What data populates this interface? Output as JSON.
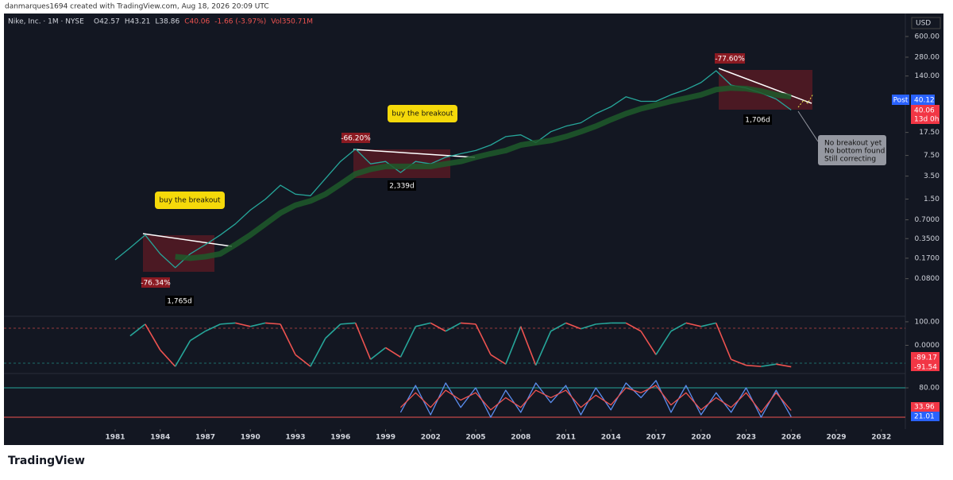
{
  "header": {
    "credit": "danmarques1694 created with TradingView.com, Aug 18, 2026 20:09 UTC",
    "symbol": "Nike, Inc. · 1M · NYSE",
    "ohlc": [
      "O42.57",
      "H43.21",
      "L38.86",
      "C40.06",
      "-1.66 (-3.97%)",
      "Vol350.71M"
    ]
  },
  "axis_labels": {
    "currency": "USD",
    "post": "Post",
    "post_price": "40.12",
    "close": "40.06",
    "countdown": "13d 0h",
    "osc_a": "-89.17",
    "osc_b": "-91.54",
    "stoch_d": "33.96",
    "stoch_k": "21.01"
  },
  "annotations": {
    "breakout_1": "buy the breakout",
    "drop_1": "-76.34%",
    "days_1": "1,765d",
    "drop_2": "-66.20%",
    "breakout_2": "buy the breakout",
    "days_2": "2,339d",
    "drop_3": "-77.60%",
    "days_3": "1,706d",
    "note": [
      "No breakout yet",
      "No bottom found",
      "Still correcting"
    ]
  },
  "footer": {
    "brand": "TradingView"
  },
  "chart_data": [
    {
      "type": "line",
      "log_scale": true,
      "x": [
        1981,
        1982,
        1983,
        1984,
        1985,
        1986,
        1987,
        1988,
        1989,
        1990,
        1991,
        1992,
        1993,
        1994,
        1995,
        1996,
        1997,
        1998,
        1999,
        2000,
        2001,
        2002,
        2003,
        2004,
        2005,
        2006,
        2007,
        2008,
        2009,
        2010,
        2011,
        2012,
        2013,
        2014,
        2015,
        2016,
        2017,
        2018,
        2019,
        2020,
        2021,
        2022,
        2023,
        2024,
        2025,
        2026
      ],
      "series": [
        {
          "color": "#26a69a",
          "values": [
            0.16,
            0.25,
            0.4,
            0.2,
            0.12,
            0.2,
            0.28,
            0.4,
            0.6,
            1.0,
            1.5,
            2.5,
            1.8,
            1.7,
            3.2,
            6,
            9.5,
            5.5,
            6,
            4,
            6,
            5.5,
            7,
            8,
            9,
            11,
            15,
            16,
            12,
            18,
            22,
            25,
            35,
            45,
            65,
            55,
            55,
            70,
            85,
            110,
            170,
            100,
            90,
            75,
            60,
            40.06
          ]
        },
        {
          "color": "#1e5a2a",
          "values": [
            null,
            null,
            null,
            null,
            0.18,
            0.17,
            0.18,
            0.2,
            0.28,
            0.4,
            0.6,
            0.9,
            1.2,
            1.4,
            1.8,
            2.6,
            3.8,
            4.5,
            5,
            5,
            5,
            5,
            5.5,
            6,
            7,
            8,
            9,
            11,
            12,
            13,
            15,
            18,
            22,
            28,
            35,
            42,
            48,
            55,
            62,
            70,
            85,
            90,
            88,
            80,
            70,
            65
          ]
        }
      ],
      "xlim": [
        1973.6,
        2033.6
      ],
      "xticks": [
        1981,
        1984,
        1987,
        1990,
        1993,
        1996,
        1999,
        2002,
        2005,
        2008,
        2011,
        2014,
        2017,
        2020,
        2023,
        2026,
        2029,
        2032
      ],
      "ylim": [
        0.02,
        1400
      ],
      "yticks": [
        {
          "value": 600,
          "label": "600.00"
        },
        {
          "value": 280,
          "label": "280.00"
        },
        {
          "value": 140,
          "label": "140.00"
        },
        {
          "value": 17.5,
          "label": "17.50"
        },
        {
          "value": 7.5,
          "label": "7.50"
        },
        {
          "value": 3.5,
          "label": "3.50"
        },
        {
          "value": 1.5,
          "label": "1.50"
        },
        {
          "value": 0.7,
          "label": "0.7000"
        },
        {
          "value": 0.35,
          "label": "0.3500"
        },
        {
          "value": 0.17,
          "label": "0.1700"
        },
        {
          "value": 0.08,
          "label": "0.0800"
        }
      ]
    },
    {
      "type": "oscillator",
      "x": [
        1982,
        1983,
        1984,
        1985,
        1986,
        1987,
        1988,
        1989,
        1990,
        1991,
        1992,
        1993,
        1994,
        1995,
        1996,
        1997,
        1998,
        1999,
        2000,
        2001,
        2002,
        2003,
        2004,
        2005,
        2006,
        2007,
        2008,
        2009,
        2010,
        2011,
        2012,
        2013,
        2014,
        2015,
        2016,
        2017,
        2018,
        2019,
        2020,
        2021,
        2022,
        2023,
        2024,
        2025,
        2026
      ],
      "values": [
        40,
        90,
        -20,
        -90,
        20,
        60,
        90,
        95,
        80,
        95,
        90,
        -40,
        -90,
        30,
        90,
        95,
        -60,
        -10,
        -50,
        80,
        95,
        60,
        95,
        90,
        -40,
        -80,
        80,
        -85,
        60,
        95,
        70,
        90,
        95,
        95,
        60,
        -40,
        60,
        95,
        80,
        95,
        -60,
        -85,
        -90,
        -80,
        -91.54
      ],
      "up_color": "#26a69a",
      "down_color": "#ef5350",
      "xlim": [
        1973.6,
        2033.6
      ],
      "ylim": [
        -120,
        120
      ],
      "yticks": [
        {
          "value": 100,
          "label": "100.00"
        },
        {
          "value": 0,
          "label": "0.0000"
        }
      ]
    },
    {
      "type": "line",
      "x": [
        2000,
        2001,
        2002,
        2003,
        2004,
        2005,
        2006,
        2007,
        2008,
        2009,
        2010,
        2011,
        2012,
        2013,
        2014,
        2015,
        2016,
        2017,
        2018,
        2019,
        2020,
        2021,
        2022,
        2023,
        2024,
        2025,
        2026
      ],
      "series": [
        {
          "color": "#5b8def",
          "values": [
            30,
            85,
            25,
            90,
            40,
            80,
            20,
            75,
            30,
            90,
            50,
            85,
            25,
            80,
            35,
            90,
            60,
            95,
            30,
            85,
            25,
            70,
            30,
            80,
            20,
            75,
            21.01
          ]
        },
        {
          "color": "#ef5350",
          "values": [
            40,
            70,
            40,
            75,
            55,
            70,
            35,
            60,
            40,
            75,
            60,
            75,
            40,
            65,
            45,
            80,
            70,
            85,
            45,
            70,
            35,
            60,
            40,
            70,
            30,
            70,
            33.96
          ]
        }
      ],
      "xlim": [
        1973.6,
        2033.6
      ],
      "ylim": [
        12,
        106
      ],
      "yticks": [
        {
          "value": 80,
          "label": "80.00"
        }
      ]
    }
  ]
}
